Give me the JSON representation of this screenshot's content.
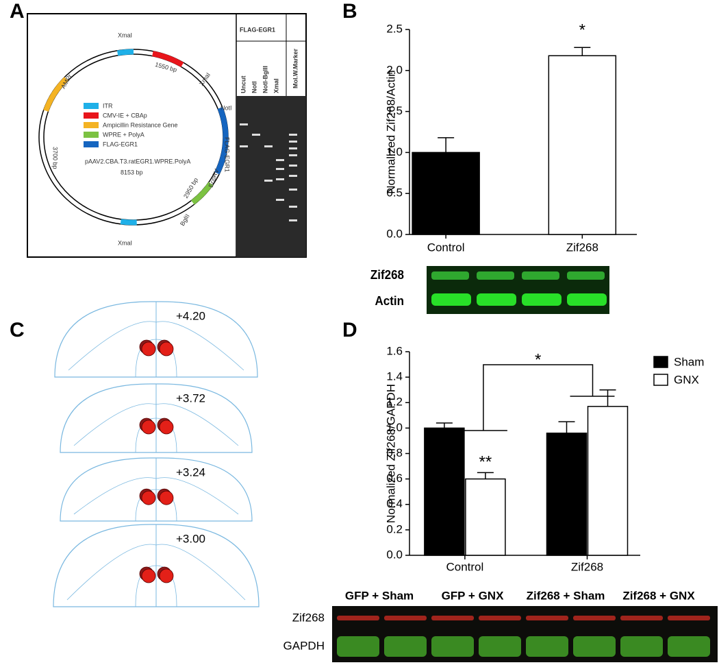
{
  "panel_labels": [
    "A",
    "B",
    "C",
    "D"
  ],
  "plasmid": {
    "name": "pAAV2.CBA.T3.ratEGR1.WPRE.PolyA",
    "size": "8153 bp",
    "sites": [
      "XmaI",
      "XmaI",
      "XmaI",
      "NotI",
      "EcoRV",
      "BglII"
    ],
    "regions": [
      "1550 bp",
      "FLAG-EGR1",
      "2950 bp",
      "3700 bp",
      "AMPr"
    ],
    "legend": [
      "ITR",
      "CMV-IE + CBAp",
      "Ampicillin Resistance Gene",
      "WPRE + PolyA",
      "FLAG-EGR1"
    ]
  },
  "gel": {
    "title": "FLAG-EGR1",
    "marker": "Mol.W.Marker",
    "lanes": [
      "Uncut",
      "NotI",
      "NotI-BglII",
      "XmaI"
    ]
  },
  "blot_b": {
    "rows": [
      "Zif268",
      "Actin"
    ]
  },
  "sections": [
    "+4.20",
    "+3.72",
    "+3.24",
    "+3.00"
  ],
  "blot_d": {
    "columns": [
      "GFP + Sham",
      "GFP + GNX",
      "Zif268 + Sham",
      "Zif268 + GNX"
    ],
    "rows": [
      "Zif268",
      "GAPDH"
    ]
  },
  "chart_data": [
    {
      "type": "bar",
      "y_label": "Normalized Zif268/Actin",
      "categories": [
        "Control",
        "Zif268"
      ],
      "values": [
        1.0,
        2.18
      ],
      "errors": [
        0.18,
        0.1
      ],
      "colors": [
        "#000000",
        "#ffffff"
      ],
      "annotation": "*",
      "ylim": [
        0,
        2.5
      ],
      "yticks": [
        {
          "value": 0,
          "label": "0.0"
        },
        0.5,
        {
          "value": 1,
          "label": "1.0"
        },
        1.5,
        {
          "value": 2,
          "label": "2.0"
        },
        2.5
      ]
    },
    {
      "type": "grouped-bar",
      "y_label": "Normalized Zif268/GAPDH",
      "categories": [
        "Control",
        "Zif268"
      ],
      "series": [
        {
          "name": "Sham",
          "color": "#000000",
          "values": [
            1.0,
            0.96
          ],
          "errors": [
            0.04,
            0.09
          ]
        },
        {
          "name": "GNX",
          "color": "#ffffff",
          "values": [
            0.6,
            1.17
          ],
          "errors": [
            0.05,
            0.13
          ]
        }
      ],
      "annotations": [
        "*",
        "**"
      ],
      "ylim": [
        0,
        1.6
      ],
      "yticks": [
        {
          "value": 0,
          "label": "0.0"
        },
        0.2,
        0.4,
        0.6,
        0.8,
        {
          "value": 1,
          "label": "1.0"
        },
        1.2,
        1.4,
        1.6
      ]
    }
  ]
}
